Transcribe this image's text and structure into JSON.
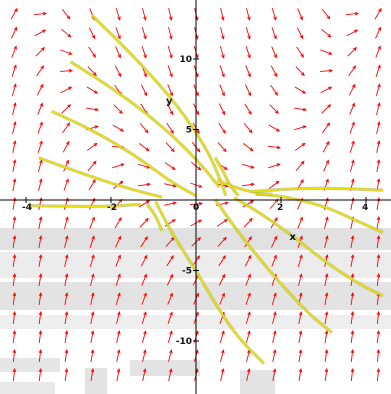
{
  "chart_data": {
    "type": "vector-field",
    "xlabel": "x",
    "ylabel": "y",
    "xlim": [
      -4.7,
      4.4
    ],
    "ylim": [
      -13.5,
      13.8
    ],
    "x_ticks": [
      {
        "value": -4,
        "label": "-4"
      },
      {
        "value": -2,
        "label": "-2"
      },
      {
        "value": 0,
        "label": "0"
      },
      {
        "value": 2,
        "label": "2"
      },
      {
        "value": 4,
        "label": "4"
      }
    ],
    "y_ticks": [
      {
        "value": 10,
        "label": "10"
      },
      {
        "value": 5,
        "label": "5"
      },
      {
        "value": -5,
        "label": "-5"
      },
      {
        "value": -10,
        "label": "-10"
      }
    ],
    "grid": false,
    "arrow_color": "#ff0000",
    "curve_color": "#e8e000",
    "curve_shadow_color": "#9aa06a",
    "background_bands_color": "#c8c8c8",
    "field_arrows_visible": true,
    "solution_curves": [
      {
        "points": [
          [
            -2.45,
            13.1
          ],
          [
            -1.4,
            10.0
          ],
          [
            -0.4,
            6.6
          ],
          [
            0.3,
            3.4
          ],
          [
            0.6,
            1.2
          ],
          [
            0.7,
            0.3
          ]
        ]
      },
      {
        "points": [
          [
            -2.95,
            9.8
          ],
          [
            -1.8,
            7.6
          ],
          [
            -0.7,
            5.0
          ],
          [
            0.1,
            2.6
          ],
          [
            0.55,
            0.9
          ]
        ]
      },
      {
        "points": [
          [
            -3.4,
            6.3
          ],
          [
            -2.4,
            4.9
          ],
          [
            -1.4,
            3.1
          ],
          [
            -0.6,
            1.3
          ],
          [
            0.0,
            0.3
          ]
        ]
      },
      {
        "points": [
          [
            -3.7,
            3.0
          ],
          [
            -2.7,
            1.9
          ],
          [
            -1.7,
            0.9
          ],
          [
            -0.8,
            0.2
          ]
        ]
      },
      {
        "points": [
          [
            -3.9,
            -0.4
          ],
          [
            -2.9,
            -0.45
          ],
          [
            -2.0,
            -0.45
          ],
          [
            -1.3,
            -0.3
          ]
        ]
      },
      {
        "points": [
          [
            -1.15,
            -0.3
          ],
          [
            -0.95,
            -1.1
          ],
          [
            -0.8,
            -2.2
          ]
        ]
      },
      {
        "points": [
          [
            -0.95,
            -0.1
          ],
          [
            -0.6,
            -2.2
          ],
          [
            0.0,
            -5.0
          ],
          [
            0.5,
            -7.6
          ],
          [
            1.0,
            -9.8
          ],
          [
            1.6,
            -11.6
          ]
        ]
      },
      {
        "points": [
          [
            0.45,
            0.05
          ],
          [
            0.9,
            -1.9
          ],
          [
            1.5,
            -4.2
          ],
          [
            2.1,
            -6.3
          ],
          [
            2.7,
            -8.2
          ],
          [
            3.2,
            -9.4
          ]
        ]
      },
      {
        "points": [
          [
            0.9,
            0.15
          ],
          [
            1.5,
            -0.9
          ],
          [
            2.3,
            -2.6
          ],
          [
            3.0,
            -4.3
          ],
          [
            3.8,
            -5.9
          ],
          [
            4.4,
            -6.8
          ]
        ]
      },
      {
        "points": [
          [
            1.4,
            0.4
          ],
          [
            2.0,
            0.3
          ],
          [
            3.0,
            -0.4
          ],
          [
            3.8,
            -1.5
          ],
          [
            4.4,
            -2.3
          ]
        ]
      },
      {
        "points": [
          [
            0.45,
            3.0
          ],
          [
            0.65,
            2.0
          ],
          [
            0.8,
            1.0
          ],
          [
            1.0,
            0.3
          ]
        ]
      },
      {
        "points": [
          [
            0.5,
            1.4
          ],
          [
            0.9,
            0.9
          ],
          [
            1.4,
            0.5
          ],
          [
            1.8,
            0.4
          ]
        ]
      },
      {
        "points": [
          [
            1.3,
            0.6
          ],
          [
            2.0,
            0.75
          ],
          [
            2.8,
            0.85
          ],
          [
            3.6,
            0.8
          ],
          [
            4.4,
            0.7
          ]
        ]
      }
    ]
  }
}
